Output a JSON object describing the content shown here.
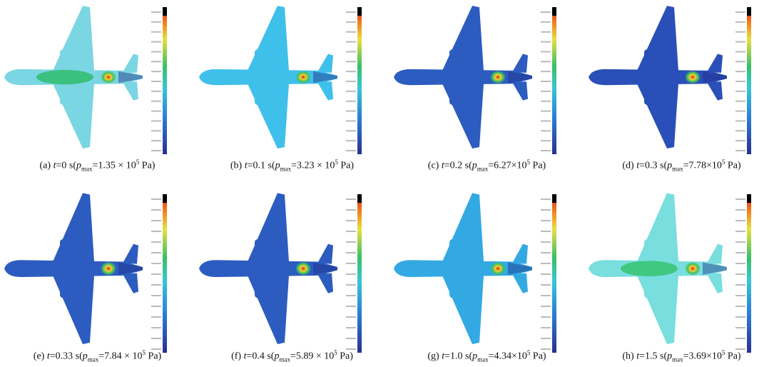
{
  "panels": [
    {
      "label": "(a)",
      "t": "t",
      "t_value": "=0 s(",
      "p": "p",
      "sub": "max",
      "p_value": "=1.35 × 10",
      "sup": "5",
      "unit": "Pa)"
    },
    {
      "label": "(b)",
      "t": "t",
      "t_value": "=0.1 s(",
      "p": "p",
      "sub": "max",
      "p_value": "=3.23 × 10",
      "sup": "5",
      "unit": "Pa)"
    },
    {
      "label": "(c)",
      "t": "t",
      "t_value": "=0.2 s(",
      "p": "p",
      "sub": "max",
      "p_value": "=6.27×10",
      "sup": "5",
      "unit": "Pa)"
    },
    {
      "label": "(d)",
      "t": "t",
      "t_value": "=0.3 s(",
      "p": "p",
      "sub": "max",
      "p_value": "=7.78×10",
      "sup": "5",
      "unit": "Pa)"
    },
    {
      "label": "(e)",
      "t": "t",
      "t_value": "=0.33 s(",
      "p": "p",
      "sub": "max",
      "p_value": "=7.84 × 10",
      "sup": "5",
      "unit": "Pa)"
    },
    {
      "label": "(f)",
      "t": "t",
      "t_value": "=0.4 s(",
      "p": "p",
      "sub": "max",
      "p_value": "=5.89 × 10",
      "sup": "5",
      "unit": "Pa)"
    },
    {
      "label": "(g)",
      "t": "t",
      "t_value": "=1.0 s(",
      "p": "p",
      "sub": "max",
      "p_value": "=4.34×10",
      "sup": "5",
      "unit": "Pa)"
    },
    {
      "label": "(h)",
      "t": "t",
      "t_value": "=1.5 s(",
      "p": "p",
      "sub": "max",
      "p_value": "=3.69×10",
      "sup": "5",
      "unit": "Pa)"
    }
  ]
}
